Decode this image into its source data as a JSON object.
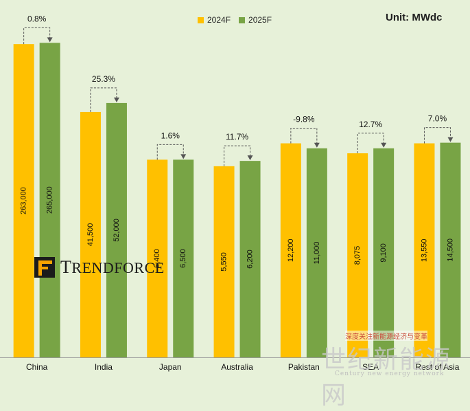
{
  "legend": {
    "s2024": "2024F",
    "s2025": "2025F"
  },
  "unit": "Unit: MWdc",
  "logo": {
    "text_first": "T",
    "text_rest": "RENDFORCE"
  },
  "watermark": {
    "top": "深度关注新能源经济与变革",
    "main": "世纪新能源网",
    "sub": "Century new energy network"
  },
  "colors": {
    "s2024": "#ffc000",
    "s2025": "#78a445",
    "background": "#e7f1d9"
  },
  "chart_data": {
    "type": "bar",
    "categories": [
      "China",
      "India",
      "Japan",
      "Australia",
      "Pakistan",
      "SEA",
      "Rest of Asia"
    ],
    "series": [
      {
        "name": "2024F",
        "values": [
          263000,
          41500,
          6400,
          5550,
          12200,
          8075,
          13550
        ],
        "labels": [
          "263,000",
          "41,500",
          "6,400",
          "5,550",
          "12,200",
          "8,075",
          "13,550"
        ]
      },
      {
        "name": "2025F",
        "values": [
          265000,
          52000,
          6500,
          6200,
          11000,
          9100,
          14500
        ],
        "labels": [
          "265,000",
          "52,000",
          "6,500",
          "6,200",
          "11,000",
          "9,100",
          "14,500"
        ]
      }
    ],
    "growth": [
      "0.8%",
      "25.3%",
      "1.6%",
      "11.7%",
      "-9.8%",
      "12.7%",
      "7.0%"
    ],
    "bar_heights_relative": [
      [
        0.9617,
        0.9655
      ],
      [
        0.7533,
        0.7808
      ],
      [
        0.6069,
        0.6069
      ],
      [
        0.5868,
        0.6031
      ],
      [
        0.6571,
        0.6418
      ],
      [
        0.6265,
        0.6418
      ],
      [
        0.6571,
        0.659
      ]
    ],
    "legend_position": "top-center",
    "grid": false
  }
}
